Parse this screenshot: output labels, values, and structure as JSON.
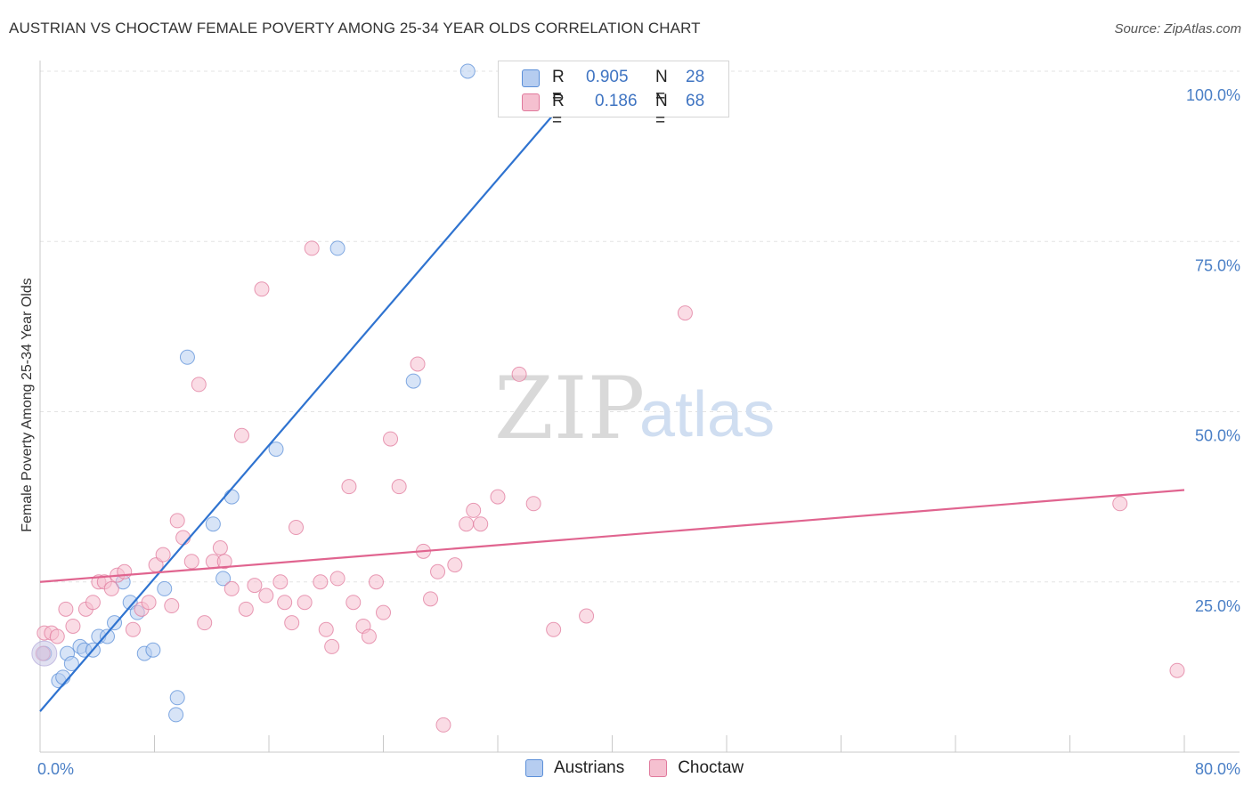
{
  "title": "AUSTRIAN VS CHOCTAW FEMALE POVERTY AMONG 25-34 YEAR OLDS CORRELATION CHART",
  "source": "Source: ZipAtlas.com",
  "watermark": {
    "zip": "ZIP",
    "atlas": "atlas"
  },
  "legend": {
    "rows": [
      {
        "r_label": "R =",
        "r_value": "0.905",
        "n_label": "N =",
        "n_value": "28"
      },
      {
        "r_label": "R =",
        "r_value": "0.186",
        "n_label": "N =",
        "n_value": "68"
      }
    ]
  },
  "chart_data": {
    "type": "scatter",
    "title": "AUSTRIAN VS CHOCTAW FEMALE POVERTY AMONG 25-34 YEAR OLDS CORRELATION CHART",
    "xlabel": "",
    "ylabel": "Female Poverty Among 25-34 Year Olds",
    "xlim": [
      0,
      80
    ],
    "ylim": [
      0,
      100
    ],
    "x_ticks": [
      "0.0%",
      "80.0%"
    ],
    "y_ticks": [
      "25.0%",
      "50.0%",
      "75.0%",
      "100.0%"
    ],
    "y_tick_values": [
      25,
      50,
      75,
      100
    ],
    "grid": true,
    "legend_position": "bottom",
    "series": [
      {
        "name": "Austrians",
        "color": "#5b8fd8",
        "fill": "#b6cdf0",
        "trend": {
          "x": [
            0,
            38.5
          ],
          "y": [
            6,
            100
          ]
        },
        "points": [
          [
            0.3,
            14.5
          ],
          [
            1.3,
            10.5
          ],
          [
            1.6,
            11
          ],
          [
            1.9,
            14.5
          ],
          [
            2.2,
            13
          ],
          [
            2.8,
            15.5
          ],
          [
            3.1,
            15
          ],
          [
            3.7,
            15
          ],
          [
            4.1,
            17
          ],
          [
            4.7,
            17
          ],
          [
            5.2,
            19
          ],
          [
            5.8,
            25
          ],
          [
            6.3,
            22
          ],
          [
            6.8,
            20.5
          ],
          [
            7.3,
            14.5
          ],
          [
            7.9,
            15
          ],
          [
            8.7,
            24
          ],
          [
            9.6,
            8
          ],
          [
            9.5,
            5.5
          ],
          [
            10.3,
            58
          ],
          [
            12.1,
            33.5
          ],
          [
            12.8,
            25.5
          ],
          [
            13.4,
            37.5
          ],
          [
            16.5,
            44.5
          ],
          [
            20.8,
            74
          ],
          [
            26.1,
            54.5
          ],
          [
            29.9,
            100
          ],
          [
            38.0,
            100
          ]
        ]
      },
      {
        "name": "Choctaw",
        "color": "#e0799c",
        "fill": "#f5c0d0",
        "trend": {
          "x": [
            0,
            80
          ],
          "y": [
            25,
            38.5
          ]
        },
        "points": [
          [
            0.3,
            17.5
          ],
          [
            0.8,
            17.5
          ],
          [
            1.2,
            17
          ],
          [
            1.8,
            21
          ],
          [
            2.3,
            18.5
          ],
          [
            3.2,
            21
          ],
          [
            3.7,
            22
          ],
          [
            4.1,
            25
          ],
          [
            4.5,
            25
          ],
          [
            5.0,
            24
          ],
          [
            5.4,
            26
          ],
          [
            5.9,
            26.5
          ],
          [
            6.5,
            18
          ],
          [
            7.1,
            21
          ],
          [
            7.6,
            22
          ],
          [
            8.1,
            27.5
          ],
          [
            8.6,
            29
          ],
          [
            9.2,
            21.5
          ],
          [
            9.6,
            34
          ],
          [
            10.0,
            31.5
          ],
          [
            10.6,
            28
          ],
          [
            11.1,
            54
          ],
          [
            11.5,
            19
          ],
          [
            12.1,
            28
          ],
          [
            12.6,
            30
          ],
          [
            12.9,
            28
          ],
          [
            13.4,
            24
          ],
          [
            14.1,
            46.5
          ],
          [
            14.4,
            21
          ],
          [
            15.0,
            24.5
          ],
          [
            15.5,
            68
          ],
          [
            15.8,
            23
          ],
          [
            16.8,
            25
          ],
          [
            17.1,
            22
          ],
          [
            17.6,
            19
          ],
          [
            17.9,
            33
          ],
          [
            18.5,
            22
          ],
          [
            19.0,
            74
          ],
          [
            19.6,
            25
          ],
          [
            20.0,
            18
          ],
          [
            20.4,
            15.5
          ],
          [
            20.8,
            25.5
          ],
          [
            21.6,
            39
          ],
          [
            21.9,
            22
          ],
          [
            22.6,
            18.5
          ],
          [
            23.0,
            17
          ],
          [
            23.5,
            25
          ],
          [
            24.0,
            20.5
          ],
          [
            24.5,
            46
          ],
          [
            25.1,
            39
          ],
          [
            26.4,
            57
          ],
          [
            26.8,
            29.5
          ],
          [
            27.3,
            22.5
          ],
          [
            27.8,
            26.5
          ],
          [
            28.2,
            4
          ],
          [
            29.0,
            27.5
          ],
          [
            29.8,
            33.5
          ],
          [
            30.3,
            35.5
          ],
          [
            30.8,
            33.5
          ],
          [
            32.0,
            37.5
          ],
          [
            33.5,
            55.5
          ],
          [
            34.5,
            36.5
          ],
          [
            35.9,
            18
          ],
          [
            38.2,
            20
          ],
          [
            45.1,
            64.5
          ],
          [
            75.5,
            36.5
          ],
          [
            79.5,
            12
          ],
          [
            0.2,
            14.5
          ]
        ]
      }
    ]
  }
}
